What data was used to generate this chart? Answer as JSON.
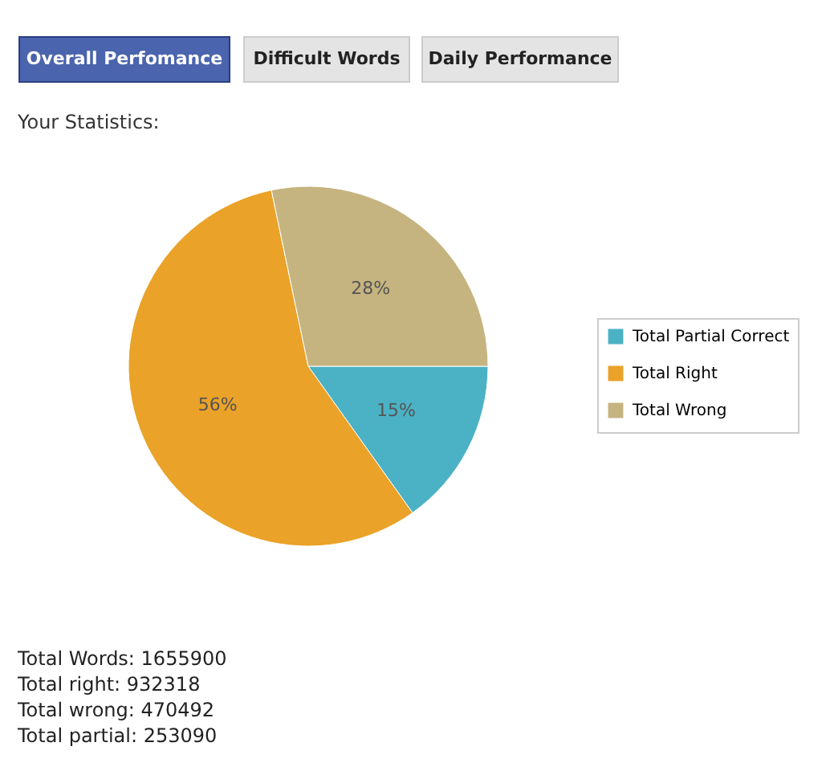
{
  "chart_data": {
    "type": "pie",
    "title": "Your Statistics:",
    "categories": [
      "Total Partial Correct",
      "Total Right",
      "Total Wrong"
    ],
    "values": [
      15,
      56,
      28
    ],
    "value_labels": [
      "15%",
      "56%",
      "28%"
    ],
    "colors": [
      "#4bb2c5",
      "#eaa228",
      "#c5b47f"
    ],
    "legend": "right",
    "annotations": [
      "Overall Perfomance",
      "Difficult Words",
      "Daily Performance",
      "Total Words: 1655900",
      "Total right: 932318",
      "Total wrong: 470492",
      "Total partial: 253090"
    ]
  }
}
